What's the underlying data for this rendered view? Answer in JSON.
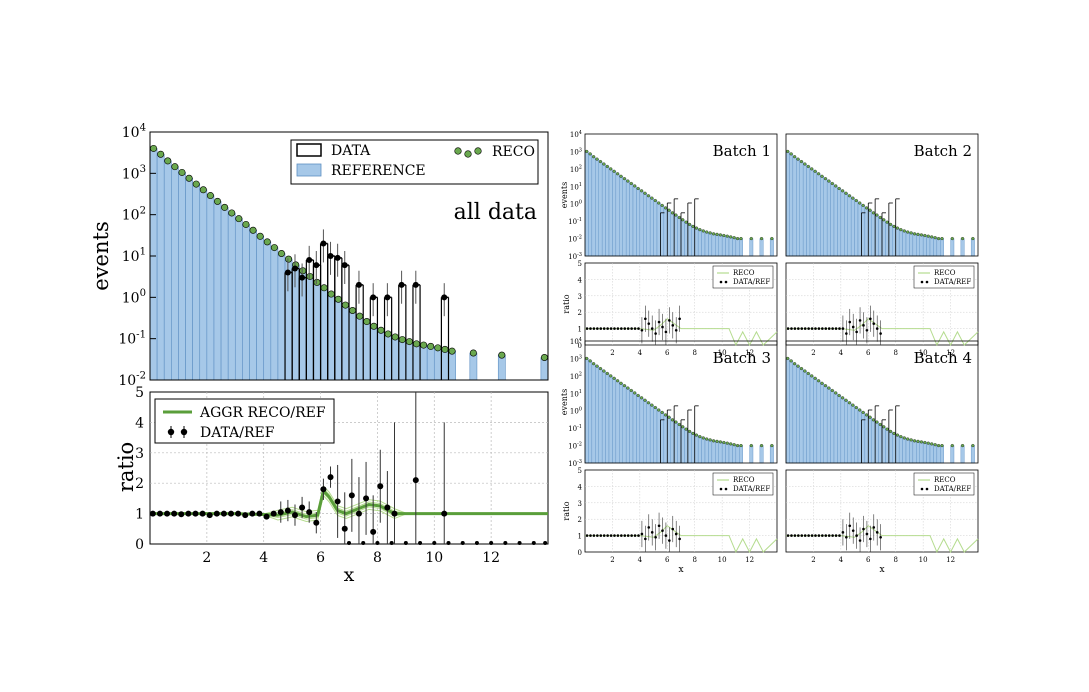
{
  "chart_data": {
    "type": "histogram-ratio-panels",
    "main": {
      "xlabel": "x",
      "ylabel_top": "events",
      "ylabel_bottom": "ratio",
      "annotation": "all data",
      "x_range": [
        0,
        14
      ],
      "y_top_scale": "log",
      "y_top_range": [
        0.01,
        10000
      ],
      "y_bottom_range": [
        0,
        5
      ],
      "x_ticks": [
        2,
        4,
        6,
        8,
        10,
        12
      ],
      "y_top_ticks": [
        "10^-2",
        "10^-1",
        "10^0",
        "10^1",
        "10^2",
        "10^3",
        "10^4"
      ],
      "y_bottom_ticks": [
        0,
        1,
        2,
        3,
        4,
        5
      ],
      "legend_top": [
        "DATA",
        "REFERENCE",
        "RECO"
      ],
      "legend_bottom": [
        "AGGR RECO/REF",
        "DATA/REF"
      ],
      "legend_top_position": "top-right",
      "legend_bottom_position": "top-left",
      "grid_bottom": true,
      "reference_bins": {
        "x_start": [
          0,
          0.25,
          0.5,
          0.75,
          1,
          1.25,
          1.5,
          1.75,
          2,
          2.25,
          2.5,
          2.75,
          3,
          3.25,
          3.5,
          3.75,
          4,
          4.25,
          4.5,
          4.75,
          5,
          5.25,
          5.5,
          5.75,
          6,
          6.25,
          6.5,
          6.75,
          7,
          7.25,
          7.5,
          7.75,
          8,
          8.25,
          8.5,
          8.75,
          9,
          9.25,
          9.5,
          9.75,
          10,
          10.25,
          10.5,
          11.25,
          12.25,
          13.75
        ],
        "values": [
          4000,
          2900,
          2000,
          1450,
          1050,
          760,
          550,
          400,
          290,
          210,
          150,
          110,
          80,
          58,
          42,
          30,
          22,
          16,
          11.5,
          8.4,
          6.1,
          4.4,
          3.2,
          2.3,
          1.7,
          1.2,
          0.9,
          0.65,
          0.48,
          0.35,
          0.26,
          0.2,
          0.16,
          0.13,
          0.11,
          0.095,
          0.085,
          0.075,
          0.07,
          0.065,
          0.06,
          0.055,
          0.05,
          0.045,
          0.04,
          0.035
        ]
      },
      "data_points": {
        "x": [
          0.1,
          0.35,
          0.6,
          0.85,
          1.1,
          1.35,
          1.6,
          1.85,
          2.1,
          2.35,
          2.6,
          2.85,
          3.1,
          3.35,
          3.6,
          3.85,
          4.1,
          4.35,
          4.6,
          4.85,
          5.1,
          5.35,
          5.6,
          5.85,
          6.1,
          6.35,
          6.6,
          6.85,
          7.35,
          7.85,
          8.35,
          8.85,
          9.35,
          10.35
        ],
        "y": [
          4000,
          2900,
          2000,
          1450,
          1050,
          760,
          550,
          400,
          290,
          210,
          150,
          110,
          80,
          58,
          42,
          30,
          22,
          16,
          11.5,
          4,
          5,
          3,
          8,
          6,
          20,
          10,
          9,
          6,
          2,
          1,
          1,
          2,
          2,
          1
        ]
      },
      "ratio_points": {
        "x": [
          0.1,
          0.35,
          0.6,
          0.85,
          1.1,
          1.35,
          1.6,
          1.85,
          2.1,
          2.35,
          2.6,
          2.85,
          3.1,
          3.35,
          3.6,
          3.85,
          4.1,
          4.35,
          4.6,
          4.85,
          5.1,
          5.35,
          5.6,
          5.85,
          6.1,
          6.35,
          6.6,
          6.85,
          7.1,
          7.35,
          7.6,
          7.85,
          8.1,
          8.35,
          8.6,
          9.35,
          10.35
        ],
        "y": [
          1,
          1,
          1,
          1,
          0.98,
          1,
          1,
          1,
          0.95,
          1,
          1,
          1,
          1,
          0.95,
          1,
          1,
          0.9,
          1,
          1.05,
          1.1,
          0.95,
          1.2,
          1.05,
          0.7,
          1.8,
          2.2,
          1.4,
          0.5,
          1.6,
          1.0,
          1.5,
          0.4,
          1.9,
          1.2,
          1.0,
          2.1,
          1.0
        ]
      },
      "aggr_reco_ref": {
        "x": [
          0,
          1,
          2,
          3,
          4,
          4.5,
          5,
          5.5,
          5.9,
          6.1,
          6.3,
          6.6,
          6.9,
          7.3,
          7.7,
          8.1,
          8.6,
          9.0,
          9.5,
          10,
          11,
          12,
          13,
          14
        ],
        "y": [
          1,
          1,
          1,
          1,
          0.97,
          0.95,
          1.05,
          0.9,
          0.95,
          1.75,
          1.55,
          1.1,
          1.0,
          1.15,
          1.3,
          1.25,
          1.0,
          1.0,
          1.0,
          1.0,
          1.0,
          1.0,
          1.0,
          1.0
        ]
      }
    },
    "batches": [
      {
        "title": "Batch 1"
      },
      {
        "title": "Batch 2"
      },
      {
        "title": "Batch 3"
      },
      {
        "title": "Batch 4"
      }
    ],
    "batch_axes": {
      "xlabel": "x",
      "ylabel_top": "events",
      "ylabel_bottom": "ratio",
      "legend_bottom": [
        "RECO",
        "DATA/REF"
      ],
      "x_ticks": [
        2,
        4,
        6,
        8,
        10,
        12
      ],
      "y_top_ticks": [
        "10^-3",
        "10^-2",
        "10^-1",
        "10^0",
        "10^1",
        "10^2",
        "10^3",
        "10^4"
      ],
      "y_bottom_ticks": [
        0,
        1,
        2,
        3,
        4,
        5
      ]
    },
    "colors": {
      "reference_fill": "#a6c8e8",
      "reference_edge": "#5d8fc2",
      "reco_point": "#6aa84f",
      "aggr_line": "#5a9e3a",
      "batch_line": "#b5dc8f"
    }
  }
}
